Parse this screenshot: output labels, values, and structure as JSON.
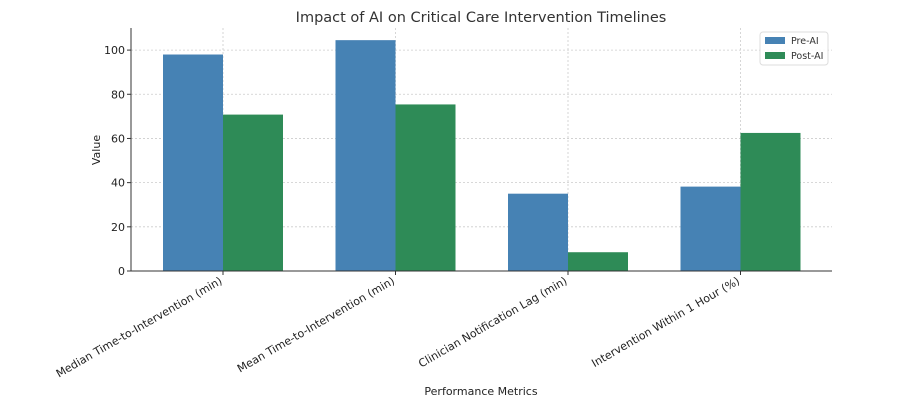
{
  "chart_data": {
    "type": "bar",
    "title": "Impact of AI on Critical Care Intervention Timelines",
    "xlabel": "Performance Metrics",
    "ylabel": "Value",
    "categories": [
      "Median Time-to-Intervention (min)",
      "Mean Time-to-Intervention (min)",
      "Clinician Notification Lag (min)",
      "Intervention Within 1 Hour (%)"
    ],
    "series": [
      {
        "name": "Pre-AI",
        "color": "#4682b4",
        "values": [
          98,
          104.5,
          35,
          38.2
        ]
      },
      {
        "name": "Post-AI",
        "color": "#2e8b57",
        "values": [
          70.8,
          75.4,
          8.5,
          62.5
        ]
      }
    ],
    "ylim": [
      0,
      110
    ],
    "yticks": [
      0,
      20,
      40,
      60,
      80,
      100
    ],
    "grid": true,
    "legend_position": "top-right"
  }
}
